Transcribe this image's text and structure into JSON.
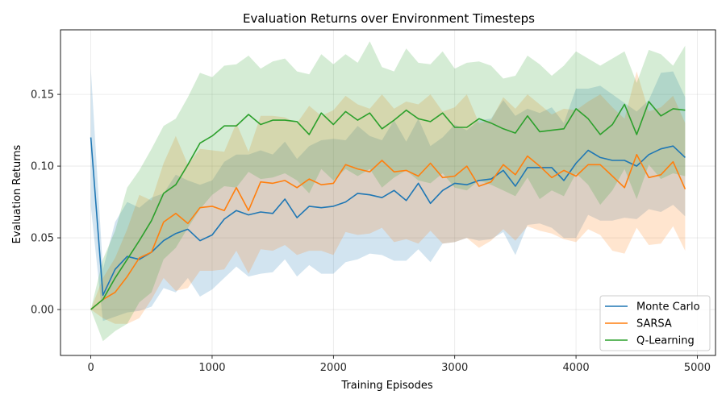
{
  "chart_data": {
    "type": "line",
    "title": "Evaluation Returns over Environment Timesteps",
    "xlabel": "Training Episodes",
    "ylabel": "Evaluation Returns",
    "xlim": [
      -250,
      5150
    ],
    "ylim": [
      -0.032,
      0.195
    ],
    "xticks": [
      0,
      1000,
      2000,
      3000,
      4000,
      5000
    ],
    "yticks": [
      0.0,
      0.05,
      0.1,
      0.15
    ],
    "xtick_labels": [
      "0",
      "1000",
      "2000",
      "3000",
      "4000",
      "5000"
    ],
    "ytick_labels": [
      "0.00",
      "0.05",
      "0.10",
      "0.15"
    ],
    "grid": true,
    "legend_position": "lower-right",
    "x": [
      0,
      100,
      200,
      300,
      400,
      500,
      600,
      700,
      800,
      900,
      1000,
      1100,
      1200,
      1300,
      1400,
      1500,
      1600,
      1700,
      1800,
      1900,
      2000,
      2100,
      2200,
      2300,
      2400,
      2500,
      2600,
      2700,
      2800,
      2900,
      3000,
      3100,
      3200,
      3300,
      3400,
      3500,
      3600,
      3700,
      3800,
      3900,
      4000,
      4100,
      4200,
      4300,
      4400,
      4500,
      4600,
      4700,
      4800,
      4900
    ],
    "series": [
      {
        "name": "Monte Carlo",
        "color": "#1f77b4",
        "values": [
          0.12,
          0.01,
          0.028,
          0.037,
          0.035,
          0.04,
          0.048,
          0.053,
          0.056,
          0.048,
          0.052,
          0.063,
          0.069,
          0.066,
          0.068,
          0.067,
          0.077,
          0.064,
          0.072,
          0.071,
          0.072,
          0.075,
          0.081,
          0.08,
          0.078,
          0.083,
          0.076,
          0.088,
          0.074,
          0.083,
          0.088,
          0.087,
          0.09,
          0.091,
          0.097,
          0.086,
          0.099,
          0.099,
          0.099,
          0.09,
          0.102,
          0.111,
          0.106,
          0.104,
          0.104,
          0.1,
          0.108,
          0.112,
          0.114,
          0.106
        ],
        "lower": [
          0.072,
          -0.008,
          -0.005,
          -0.002,
          -0.001,
          0.002,
          0.015,
          0.012,
          0.022,
          0.009,
          0.014,
          0.022,
          0.03,
          0.023,
          0.025,
          0.026,
          0.035,
          0.023,
          0.031,
          0.025,
          0.025,
          0.033,
          0.035,
          0.039,
          0.038,
          0.034,
          0.034,
          0.042,
          0.033,
          0.046,
          0.047,
          0.05,
          0.048,
          0.049,
          0.054,
          0.038,
          0.059,
          0.06,
          0.057,
          0.05,
          0.05,
          0.066,
          0.062,
          0.062,
          0.064,
          0.063,
          0.07,
          0.068,
          0.073,
          0.065
        ],
        "upper": [
          0.168,
          0.028,
          0.061,
          0.075,
          0.071,
          0.078,
          0.081,
          0.094,
          0.09,
          0.087,
          0.09,
          0.103,
          0.108,
          0.108,
          0.111,
          0.108,
          0.117,
          0.105,
          0.114,
          0.118,
          0.119,
          0.118,
          0.128,
          0.121,
          0.118,
          0.132,
          0.117,
          0.133,
          0.114,
          0.12,
          0.129,
          0.125,
          0.132,
          0.133,
          0.146,
          0.135,
          0.14,
          0.137,
          0.141,
          0.13,
          0.154,
          0.154,
          0.156,
          0.15,
          0.144,
          0.138,
          0.146,
          0.165,
          0.166,
          0.148
        ]
      },
      {
        "name": "SARSA",
        "color": "#ff7f0e",
        "values": [
          0.0,
          0.007,
          0.012,
          0.023,
          0.036,
          0.04,
          0.061,
          0.067,
          0.06,
          0.071,
          0.072,
          0.069,
          0.085,
          0.069,
          0.089,
          0.088,
          0.09,
          0.085,
          0.091,
          0.087,
          0.088,
          0.101,
          0.098,
          0.096,
          0.104,
          0.096,
          0.097,
          0.093,
          0.102,
          0.092,
          0.093,
          0.1,
          0.086,
          0.089,
          0.101,
          0.094,
          0.107,
          0.1,
          0.092,
          0.097,
          0.093,
          0.101,
          0.101,
          0.093,
          0.085,
          0.108,
          0.092,
          0.094,
          0.103,
          0.084
        ],
        "lower": [
          0.0,
          -0.006,
          -0.01,
          -0.01,
          -0.006,
          0.007,
          0.022,
          0.013,
          0.015,
          0.027,
          0.027,
          0.028,
          0.041,
          0.025,
          0.042,
          0.041,
          0.045,
          0.038,
          0.041,
          0.041,
          0.038,
          0.054,
          0.052,
          0.053,
          0.057,
          0.047,
          0.049,
          0.046,
          0.055,
          0.046,
          0.047,
          0.05,
          0.043,
          0.048,
          0.056,
          0.048,
          0.058,
          0.055,
          0.053,
          0.049,
          0.047,
          0.056,
          0.052,
          0.041,
          0.039,
          0.057,
          0.045,
          0.046,
          0.058,
          0.041
        ],
        "upper": [
          0.0,
          0.022,
          0.036,
          0.056,
          0.08,
          0.076,
          0.102,
          0.121,
          0.101,
          0.112,
          0.111,
          0.11,
          0.13,
          0.11,
          0.135,
          0.135,
          0.134,
          0.13,
          0.142,
          0.135,
          0.139,
          0.149,
          0.143,
          0.14,
          0.15,
          0.14,
          0.145,
          0.143,
          0.15,
          0.138,
          0.141,
          0.15,
          0.13,
          0.132,
          0.148,
          0.14,
          0.15,
          0.143,
          0.136,
          0.14,
          0.139,
          0.145,
          0.15,
          0.141,
          0.133,
          0.166,
          0.138,
          0.141,
          0.149,
          0.13
        ]
      },
      {
        "name": "Q-Learning",
        "color": "#2ca02c",
        "values": [
          0.0,
          0.007,
          0.022,
          0.035,
          0.048,
          0.062,
          0.081,
          0.087,
          0.101,
          0.116,
          0.121,
          0.128,
          0.128,
          0.136,
          0.129,
          0.132,
          0.132,
          0.131,
          0.122,
          0.137,
          0.129,
          0.138,
          0.132,
          0.137,
          0.126,
          0.132,
          0.139,
          0.133,
          0.131,
          0.137,
          0.127,
          0.127,
          0.133,
          0.13,
          0.126,
          0.123,
          0.135,
          0.124,
          0.125,
          0.126,
          0.14,
          0.133,
          0.122,
          0.129,
          0.143,
          0.122,
          0.145,
          0.135,
          0.14,
          0.139
        ],
        "lower": [
          0.0,
          -0.022,
          -0.015,
          -0.01,
          0.005,
          0.012,
          0.035,
          0.043,
          0.057,
          0.07,
          0.08,
          0.086,
          0.085,
          0.096,
          0.091,
          0.092,
          0.095,
          0.09,
          0.081,
          0.098,
          0.09,
          0.098,
          0.093,
          0.098,
          0.085,
          0.092,
          0.097,
          0.09,
          0.088,
          0.095,
          0.085,
          0.083,
          0.09,
          0.087,
          0.083,
          0.079,
          0.092,
          0.077,
          0.083,
          0.079,
          0.095,
          0.087,
          0.073,
          0.083,
          0.098,
          0.077,
          0.101,
          0.091,
          0.095,
          0.093
        ],
        "upper": [
          0.0,
          0.035,
          0.055,
          0.085,
          0.097,
          0.112,
          0.128,
          0.133,
          0.148,
          0.165,
          0.162,
          0.17,
          0.171,
          0.177,
          0.168,
          0.173,
          0.175,
          0.166,
          0.164,
          0.178,
          0.171,
          0.178,
          0.172,
          0.187,
          0.169,
          0.166,
          0.182,
          0.172,
          0.171,
          0.18,
          0.168,
          0.172,
          0.173,
          0.17,
          0.161,
          0.163,
          0.177,
          0.171,
          0.163,
          0.17,
          0.18,
          0.175,
          0.17,
          0.175,
          0.18,
          0.158,
          0.181,
          0.178,
          0.17,
          0.184
        ]
      }
    ]
  }
}
